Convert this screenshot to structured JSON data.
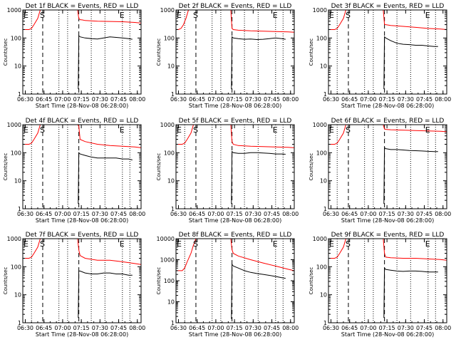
{
  "figure": {
    "ylabel": "Counts/sec",
    "xlabel": "Start Time (28-Nov-08 06:28:00)",
    "x_tick_labels": [
      "06:30",
      "06:45",
      "07:00",
      "07:15",
      "07:30",
      "07:45",
      "08:00"
    ],
    "y_tick_labels": [
      "1",
      "10",
      "100",
      "1000"
    ],
    "y_tick_labels_big": [
      "1",
      "10",
      "100",
      "1000",
      "10000"
    ],
    "marker_labels": [
      "E",
      "S",
      "E"
    ],
    "colors": {
      "events": "#000000",
      "lld": "#ff0000",
      "axes": "#000000",
      "background": "#ffffff"
    }
  },
  "chart_data": [
    {
      "type": "line",
      "title": "Det 1f BLACK = Events, RED = LLD",
      "xlabel": "Start Time (28-Nov-08 06:28:00)",
      "ylabel": "Counts/sec",
      "x_unit": "minutes since 06:28:00",
      "xlim": [
        0,
        95
      ],
      "ylim": [
        1,
        1000
      ],
      "yscale": "log",
      "markers_dashed": [
        16,
        45
      ],
      "markers_dotted": [
        7,
        29,
        36,
        55,
        66,
        80,
        86
      ],
      "series": [
        {
          "name": "LLD",
          "color": "#ff0000",
          "x": [
            0,
            5,
            7,
            9,
            12,
            14,
            16,
            18,
            20,
            26,
            28,
            44,
            45,
            46,
            48,
            50,
            60,
            70,
            80,
            90,
            95
          ],
          "y": [
            200,
            200,
            220,
            300,
            500,
            1000,
            1000,
            1000,
            1000,
            1000,
            1000,
            1000,
            500,
            450,
            440,
            420,
            400,
            390,
            380,
            360,
            340
          ]
        },
        {
          "name": "Events",
          "color": "#000000",
          "x": [
            44.5,
            45,
            46,
            50,
            55,
            60,
            65,
            70,
            75,
            80,
            85,
            88
          ],
          "y": [
            1.5,
            120,
            110,
            100,
            95,
            92,
            100,
            110,
            105,
            100,
            95,
            90
          ]
        }
      ]
    },
    {
      "type": "line",
      "title": "Det 2f BLACK = Events, RED = LLD",
      "xlabel": "Start Time (28-Nov-08 06:28:00)",
      "ylabel": "Counts/sec",
      "x_unit": "minutes since 06:28:00",
      "xlim": [
        0,
        95
      ],
      "ylim": [
        1,
        1000
      ],
      "yscale": "log",
      "markers_dashed": [
        16,
        45
      ],
      "markers_dotted": [
        7,
        29,
        36,
        55,
        66,
        80,
        86
      ],
      "series": [
        {
          "name": "LLD",
          "color": "#ff0000",
          "x": [
            0,
            2,
            4,
            6,
            8,
            10,
            12,
            14,
            16,
            18,
            20,
            26,
            28,
            44,
            45,
            46,
            50,
            60,
            70,
            80,
            90,
            95
          ],
          "y": [
            200,
            200,
            220,
            300,
            500,
            1000,
            1000,
            1000,
            1000,
            1000,
            1000,
            1000,
            1000,
            1000,
            220,
            200,
            190,
            180,
            175,
            170,
            165,
            160
          ]
        },
        {
          "name": "Events",
          "color": "#000000",
          "x": [
            44.5,
            45,
            46,
            50,
            55,
            60,
            65,
            70,
            75,
            80,
            85,
            88
          ],
          "y": [
            1.5,
            110,
            100,
            95,
            90,
            92,
            88,
            90,
            95,
            100,
            95,
            90
          ]
        }
      ]
    },
    {
      "type": "line",
      "title": "Det 3f BLACK = Events, RED = LLD",
      "xlabel": "Start Time (28-Nov-08 06:28:00)",
      "ylabel": "Counts/sec",
      "x_unit": "minutes since 06:28:00",
      "xlim": [
        0,
        95
      ],
      "ylim": [
        1,
        1000
      ],
      "yscale": "log",
      "markers_dashed": [
        16,
        45
      ],
      "markers_dotted": [
        7,
        29,
        36,
        55,
        66,
        80,
        86
      ],
      "series": [
        {
          "name": "LLD",
          "color": "#ff0000",
          "x": [
            0,
            5,
            7,
            9,
            12,
            14,
            16,
            18,
            20,
            26,
            28,
            44,
            45,
            46,
            50,
            60,
            70,
            80,
            90,
            95
          ],
          "y": [
            200,
            200,
            220,
            300,
            500,
            1000,
            1000,
            1000,
            1000,
            1000,
            1000,
            1000,
            310,
            300,
            280,
            260,
            240,
            220,
            210,
            200
          ]
        },
        {
          "name": "Events",
          "color": "#000000",
          "x": [
            44.5,
            45,
            46,
            50,
            55,
            60,
            65,
            70,
            75,
            80,
            85,
            88
          ],
          "y": [
            1.5,
            110,
            100,
            80,
            65,
            60,
            58,
            55,
            55,
            52,
            50,
            50
          ]
        }
      ]
    },
    {
      "type": "line",
      "title": "Det 4f BLACK = Events, RED = LLD",
      "xlabel": "Start Time (28-Nov-08 06:28:00)",
      "ylabel": "Counts/sec",
      "x_unit": "minutes since 06:28:00",
      "xlim": [
        0,
        95
      ],
      "ylim": [
        1,
        1000
      ],
      "yscale": "log",
      "markers_dashed": [
        16,
        45
      ],
      "markers_dotted": [
        7,
        29,
        36,
        55,
        66,
        80,
        86
      ],
      "series": [
        {
          "name": "LLD",
          "color": "#ff0000",
          "x": [
            0,
            5,
            7,
            9,
            12,
            14,
            16,
            18,
            20,
            26,
            28,
            44,
            45,
            46,
            50,
            60,
            70,
            80,
            90,
            95
          ],
          "y": [
            200,
            200,
            220,
            300,
            500,
            1000,
            1000,
            1000,
            1000,
            1000,
            1000,
            1000,
            900,
            300,
            250,
            200,
            180,
            170,
            160,
            150
          ]
        },
        {
          "name": "Events",
          "color": "#000000",
          "x": [
            44.5,
            45,
            46,
            50,
            55,
            60,
            65,
            70,
            75,
            80,
            85,
            88
          ],
          "y": [
            1.5,
            100,
            90,
            80,
            70,
            65,
            65,
            65,
            65,
            60,
            60,
            55
          ]
        }
      ]
    },
    {
      "type": "line",
      "title": "Det 5f BLACK = Events, RED = LLD",
      "xlabel": "Start Time (28-Nov-08 06:28:00)",
      "ylabel": "Counts/sec",
      "x_unit": "minutes since 06:28:00",
      "xlim": [
        0,
        95
      ],
      "ylim": [
        1,
        1000
      ],
      "yscale": "log",
      "markers_dashed": [
        16,
        45
      ],
      "markers_dotted": [
        7,
        29,
        36,
        55,
        66,
        80,
        86
      ],
      "series": [
        {
          "name": "LLD",
          "color": "#ff0000",
          "x": [
            0,
            5,
            7,
            9,
            12,
            14,
            16,
            18,
            20,
            26,
            28,
            44,
            45,
            46,
            50,
            60,
            70,
            80,
            90,
            95
          ],
          "y": [
            200,
            200,
            220,
            300,
            500,
            1000,
            1000,
            1000,
            1000,
            1000,
            1000,
            1000,
            250,
            200,
            180,
            170,
            165,
            160,
            155,
            150
          ]
        },
        {
          "name": "Events",
          "color": "#000000",
          "x": [
            44.5,
            45,
            46,
            50,
            55,
            60,
            65,
            70,
            75,
            80,
            85,
            88
          ],
          "y": [
            1.5,
            110,
            100,
            95,
            95,
            100,
            100,
            98,
            95,
            90,
            90,
            88
          ]
        }
      ]
    },
    {
      "type": "line",
      "title": "Det 6f BLACK = Events, RED = LLD",
      "xlabel": "Start Time (28-Nov-08 06:28:00)",
      "ylabel": "Counts/sec",
      "x_unit": "minutes since 06:28:00",
      "xlim": [
        0,
        95
      ],
      "ylim": [
        1,
        1000
      ],
      "yscale": "log",
      "markers_dashed": [
        16,
        45
      ],
      "markers_dotted": [
        7,
        29,
        36,
        55,
        66,
        80,
        86
      ],
      "series": [
        {
          "name": "LLD",
          "color": "#ff0000",
          "x": [
            0,
            5,
            7,
            9,
            12,
            14,
            16,
            18,
            20,
            26,
            28,
            44,
            45,
            46,
            50,
            60,
            70,
            80,
            90,
            95
          ],
          "y": [
            200,
            200,
            220,
            300,
            500,
            1000,
            1000,
            1000,
            1000,
            1000,
            1000,
            1000,
            700,
            680,
            660,
            640,
            620,
            600,
            580,
            560
          ]
        },
        {
          "name": "Events",
          "color": "#000000",
          "x": [
            44.5,
            45,
            46,
            50,
            55,
            60,
            65,
            70,
            75,
            80,
            85,
            88
          ],
          "y": [
            1.5,
            150,
            140,
            130,
            130,
            125,
            120,
            118,
            115,
            112,
            110,
            110
          ]
        }
      ]
    },
    {
      "type": "line",
      "title": "Det 7f BLACK = Events, RED = LLD",
      "xlabel": "Start Time (28-Nov-08 06:28:00)",
      "ylabel": "Counts/sec",
      "x_unit": "minutes since 06:28:00",
      "xlim": [
        0,
        95
      ],
      "ylim": [
        1,
        1000
      ],
      "yscale": "log",
      "markers_dashed": [
        16,
        45
      ],
      "markers_dotted": [
        7,
        29,
        36,
        55,
        66,
        80,
        86
      ],
      "series": [
        {
          "name": "LLD",
          "color": "#ff0000",
          "x": [
            0,
            5,
            7,
            9,
            12,
            14,
            16,
            18,
            20,
            26,
            28,
            44,
            45,
            46,
            50,
            60,
            70,
            80,
            90,
            95
          ],
          "y": [
            200,
            200,
            220,
            300,
            500,
            1000,
            1000,
            1000,
            1000,
            1000,
            1000,
            1000,
            400,
            250,
            200,
            170,
            170,
            150,
            130,
            120
          ]
        },
        {
          "name": "Events",
          "color": "#000000",
          "x": [
            44.5,
            45,
            46,
            50,
            55,
            60,
            65,
            70,
            75,
            80,
            85,
            88
          ],
          "y": [
            1.5,
            70,
            70,
            60,
            55,
            55,
            60,
            60,
            55,
            55,
            50,
            50
          ]
        }
      ]
    },
    {
      "type": "line",
      "title": "Det 8f BLACK = Events, RED = LLD",
      "xlabel": "Start Time (28-Nov-08 06:28:00)",
      "ylabel": "Counts/sec",
      "x_unit": "minutes since 06:28:00",
      "xlim": [
        0,
        95
      ],
      "ylim": [
        1,
        10000
      ],
      "yscale": "log",
      "markers_dashed": [
        16,
        45
      ],
      "markers_dotted": [
        7,
        29,
        36,
        55,
        66,
        80,
        86
      ],
      "series": [
        {
          "name": "LLD",
          "color": "#ff0000",
          "x": [
            0,
            5,
            7,
            9,
            12,
            14,
            16,
            18,
            20,
            26,
            28,
            44,
            45,
            46,
            50,
            60,
            70,
            80,
            90,
            95
          ],
          "y": [
            300,
            300,
            400,
            800,
            2000,
            5000,
            10000,
            10000,
            10000,
            10000,
            10000,
            10000,
            3000,
            2000,
            1500,
            1000,
            700,
            500,
            350,
            300
          ]
        },
        {
          "name": "Events",
          "color": "#000000",
          "x": [
            44.5,
            45,
            46,
            50,
            55,
            60,
            65,
            70,
            75,
            80,
            85,
            88
          ],
          "y": [
            1.5,
            600,
            500,
            400,
            300,
            250,
            220,
            200,
            180,
            160,
            140,
            130
          ]
        }
      ]
    },
    {
      "type": "line",
      "title": "Det 9f BLACK = Events, RED = LLD",
      "xlabel": "Start Time (28-Nov-08 06:28:00)",
      "ylabel": "Counts/sec",
      "x_unit": "minutes since 06:28:00",
      "xlim": [
        0,
        95
      ],
      "ylim": [
        1,
        1000
      ],
      "yscale": "log",
      "markers_dashed": [
        16,
        45
      ],
      "markers_dotted": [
        7,
        29,
        36,
        55,
        66,
        80,
        86
      ],
      "series": [
        {
          "name": "LLD",
          "color": "#ff0000",
          "x": [
            0,
            5,
            7,
            9,
            12,
            14,
            16,
            18,
            20,
            26,
            28,
            44,
            45,
            46,
            50,
            60,
            70,
            80,
            90,
            95
          ],
          "y": [
            200,
            200,
            220,
            300,
            500,
            1000,
            1000,
            1000,
            1000,
            1000,
            1000,
            1000,
            300,
            220,
            210,
            200,
            200,
            190,
            180,
            170
          ]
        },
        {
          "name": "Events",
          "color": "#000000",
          "x": [
            44.5,
            45,
            46,
            50,
            55,
            60,
            65,
            70,
            75,
            80,
            85,
            88
          ],
          "y": [
            1.5,
            90,
            80,
            75,
            70,
            68,
            70,
            70,
            68,
            65,
            65,
            65
          ]
        }
      ]
    }
  ]
}
